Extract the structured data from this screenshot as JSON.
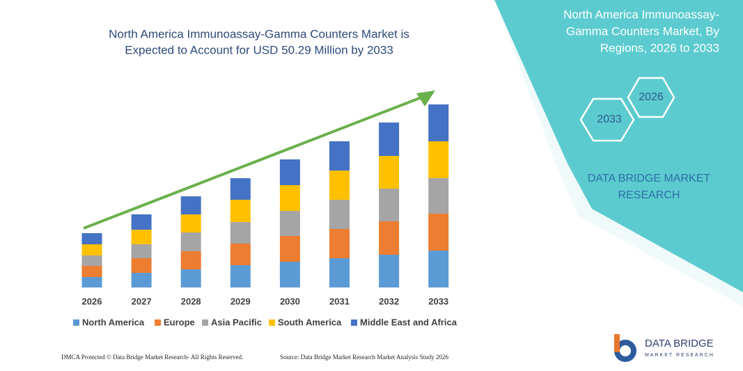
{
  "chart_data": {
    "type": "bar",
    "stacked": true,
    "title": [
      "North America Immunoassay-Gamma Counters Market is",
      "Expected to Account for USD 50.29 Million by 2033"
    ],
    "categories": [
      "2026",
      "2027",
      "2028",
      "2029",
      "2030",
      "2031",
      "2032",
      "2033"
    ],
    "series": [
      {
        "name": "North America",
        "color": "#5b9bd5",
        "values": [
          15,
          21,
          26,
          32,
          37,
          42,
          47,
          53
        ]
      },
      {
        "name": "Europe",
        "color": "#ed7d31",
        "values": [
          16,
          21,
          26,
          31,
          37,
          42,
          48,
          53
        ]
      },
      {
        "name": "Asia Pacific",
        "color": "#a5a5a5",
        "values": [
          15,
          20,
          27,
          31,
          36,
          42,
          47,
          51
        ]
      },
      {
        "name": "South America",
        "color": "#ffc000",
        "values": [
          16,
          21,
          26,
          32,
          37,
          42,
          47,
          53
        ]
      },
      {
        "name": "Middle East and Africa",
        "color": "#4472c4",
        "values": [
          16,
          22,
          26,
          31,
          37,
          42,
          48,
          53
        ]
      }
    ]
  },
  "side_panel": {
    "title": [
      "North America Immunoassay-",
      "Gamma Counters Market, By",
      "Regions, 2026 to 2033"
    ],
    "hexagons": [
      "2026",
      "2033"
    ],
    "brand": [
      "DATA BRIDGE MARKET",
      "RESEARCH"
    ]
  },
  "logo": {
    "name": "DATA BRIDGE",
    "tagline": "MARKET RESEARCH"
  },
  "footer": {
    "left": "DMCA Protected © Data Bridge Market Research- All Rights Reserved.",
    "right": "Source: Data Bridge Market Research Market Analysis Study 2026"
  }
}
